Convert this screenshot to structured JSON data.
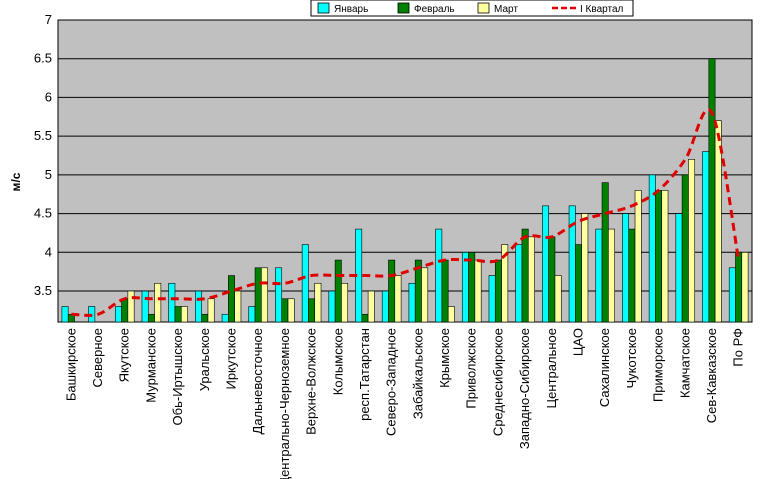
{
  "chart_data": {
    "type": "bar",
    "ylabel": "м/с",
    "ylim": [
      3.1,
      7
    ],
    "yticks": [
      "3.5",
      "4",
      "4.5",
      "5",
      "5.5",
      "6",
      "6.5",
      "7"
    ],
    "grid": true,
    "legend_position": "top-right",
    "categories": [
      "Башкирское",
      "Северное",
      "Якутское",
      "Мурманское",
      "Обь-Иртышское",
      "Уральское",
      "Иркутское",
      "Дальневосточное",
      "Центрально-Черноземное",
      "Верхне-Волжское",
      "Колымское",
      "респ.Татарстан",
      "Северо-Западное",
      "Забайкальское",
      "Крымское",
      "Приволжское",
      "Среднесибирское",
      "Западно-Сибирское",
      "Центральное",
      "ЦАО",
      "Сахалинское",
      "Чукотское",
      "Приморское",
      "Камчатское",
      "Сев-Кавказское",
      "По РФ"
    ],
    "series": [
      {
        "name": "Январь",
        "color": "#00ffff",
        "values": [
          3.3,
          3.3,
          3.3,
          3.5,
          3.6,
          3.5,
          3.2,
          3.3,
          3.8,
          4.1,
          3.5,
          4.3,
          3.5,
          3.6,
          4.3,
          4.0,
          3.7,
          4.1,
          4.6,
          4.6,
          4.3,
          4.5,
          5.0,
          4.5,
          5.3,
          3.8
        ]
      },
      {
        "name": "Февраль",
        "color": "#008000",
        "values": [
          3.2,
          3.1,
          3.4,
          3.2,
          3.3,
          3.2,
          3.7,
          3.8,
          3.4,
          3.4,
          3.9,
          3.2,
          3.9,
          3.9,
          3.9,
          4.0,
          3.9,
          4.3,
          4.2,
          4.1,
          4.9,
          4.3,
          4.8,
          5.0,
          6.5,
          4.0
        ]
      },
      {
        "name": "Март",
        "color": "#ffffa0",
        "values": [
          3.1,
          3.1,
          3.5,
          3.6,
          3.3,
          3.4,
          3.5,
          3.8,
          3.4,
          3.6,
          3.6,
          3.5,
          3.7,
          3.8,
          3.3,
          3.9,
          4.1,
          4.2,
          3.7,
          4.5,
          4.3,
          4.8,
          4.8,
          5.2,
          5.7,
          4.0
        ]
      },
      {
        "name": "I Квартал",
        "color": "#e00000",
        "type": "line",
        "values": [
          3.2,
          3.2,
          3.4,
          3.4,
          3.4,
          3.4,
          3.5,
          3.6,
          3.6,
          3.7,
          3.7,
          3.7,
          3.7,
          3.8,
          3.9,
          3.9,
          3.9,
          4.2,
          4.2,
          4.4,
          4.5,
          4.6,
          4.8,
          5.2,
          5.8,
          3.9
        ]
      }
    ]
  }
}
